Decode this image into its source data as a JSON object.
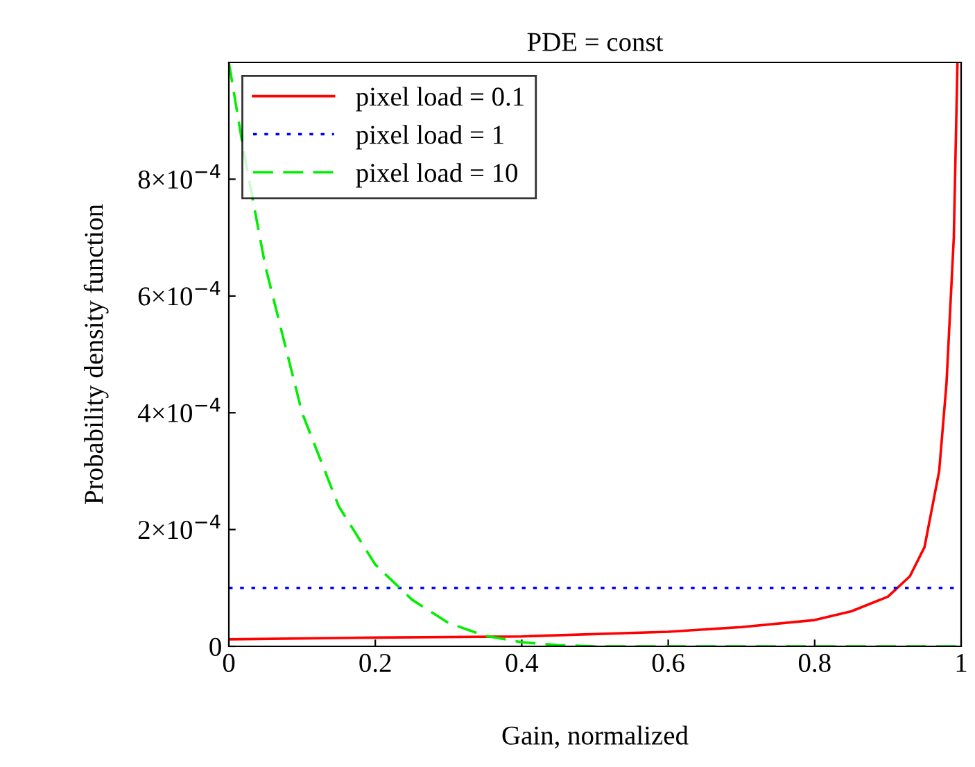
{
  "chart_data": {
    "type": "line",
    "title": "PDE = const",
    "xlabel": "Gain, normalized",
    "ylabel": "Probability density function",
    "xlim": [
      0,
      1
    ],
    "ylim": [
      0,
      0.001
    ],
    "xticks": [
      0,
      0.2,
      0.4,
      0.6,
      0.8,
      1
    ],
    "yticks": [
      0,
      {
        "value": 0.0002,
        "label": "2×10$^{−4}$"
      },
      {
        "value": 0.0004,
        "label": "4×10$^{−4}$"
      },
      {
        "value": 0.0006,
        "label": "6×10$^{−4}$"
      },
      {
        "value": 0.0008,
        "label": "8×10$^{−4}$"
      }
    ],
    "grid": false,
    "legend": "top left",
    "series": [
      {
        "name": "pixel load = 0.1",
        "color": "#ff0000",
        "line_style": "solid",
        "x": [
          0,
          0.2,
          0.4,
          0.6,
          0.7,
          0.8,
          0.85,
          0.9,
          0.93,
          0.95,
          0.97,
          0.98,
          0.99,
          0.995
        ],
        "values": [
          1.2e-05,
          1.5e-05,
          1.7e-05,
          2.5e-05,
          3.3e-05,
          4.5e-05,
          6e-05,
          8.5e-05,
          0.00012,
          0.00017,
          0.0003,
          0.00045,
          0.0007,
          0.001
        ]
      },
      {
        "name": "pixel load = 1",
        "color": "#0000ff",
        "line_style": "dotted",
        "x": [
          0,
          1
        ],
        "values": [
          0.0001,
          0.0001
        ]
      },
      {
        "name": "pixel load = 10",
        "color": "#00ee00",
        "line_style": "dashed",
        "x": [
          0,
          0.02,
          0.05,
          0.1,
          0.15,
          0.2,
          0.25,
          0.3,
          0.35,
          0.4,
          0.45,
          0.5,
          1
        ],
        "values": [
          0.001,
          0.00085,
          0.00065,
          0.0004,
          0.00024,
          0.00014,
          8e-05,
          4e-05,
          1.8e-05,
          7e-06,
          2e-06,
          0,
          0
        ]
      }
    ]
  }
}
